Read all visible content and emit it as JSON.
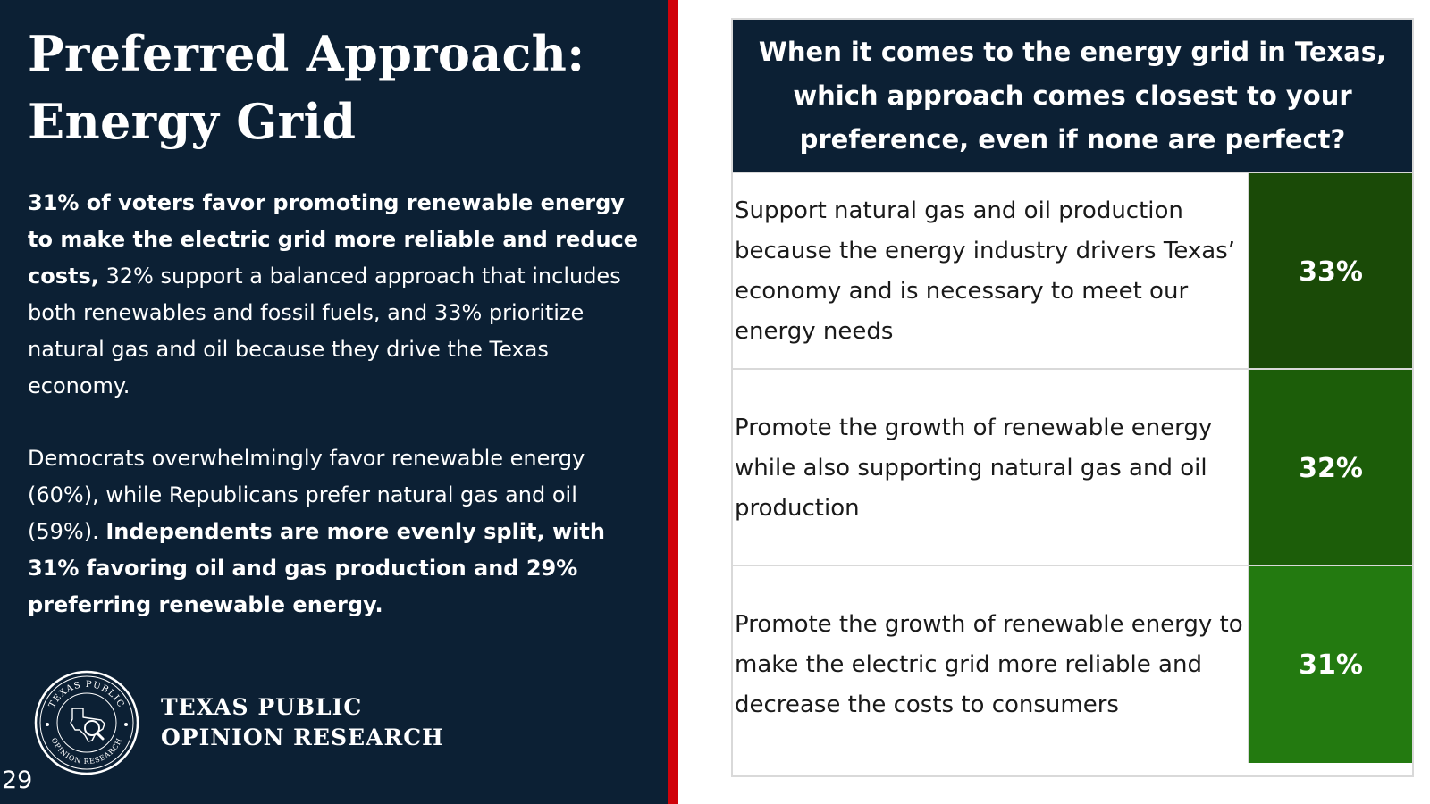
{
  "slide": {
    "title_line1": "Preferred Approach:",
    "title_line2": "Energy Grid",
    "page_number": "29"
  },
  "summary": {
    "para1_bold": " 31% of voters favor promoting renewable energy to make the electric grid more reliable and reduce costs,",
    "para1_regular": " 32% support a balanced approach that includes both renewables and fossil fuels, and 33% prioritize natural gas and oil because they drive the Texas economy.",
    "para2_regular": "Democrats overwhelmingly favor renewable energy (60%), while Republicans prefer natural gas and oil (59%). ",
    "para2_bold": "Independents are more evenly split, with 31% favoring oil and gas production and 29% preferring renewable energy."
  },
  "organization": {
    "name_line1": "TEXAS PUBLIC",
    "name_line2": "OPINION RESEARCH",
    "seal_text_top": "TEXAS PUBLIC",
    "seal_text_bottom": "OPINION RESEARCH"
  },
  "question": {
    "text": "When it comes to the energy grid in Texas, which approach comes closest to your preference, even if none are perfect?"
  },
  "options": [
    {
      "text": "Support natural gas and oil production because the energy industry drivers Texas’ economy and is necessary to meet our energy needs",
      "value": "33%",
      "share": 0.33,
      "color": "#1a4a07"
    },
    {
      "text": "Promote the growth of renewable energy while also supporting natural gas and oil production",
      "value": "32%",
      "share": 0.32,
      "color": "#1c5d09"
    },
    {
      "text": "Promote the growth of renewable energy to make the electric grid more reliable and decrease the costs to consumers",
      "value": "31%",
      "share": 0.31,
      "color": "#237a10"
    }
  ],
  "colors": {
    "navy": "#0c2034",
    "accent_red": "#d0020a"
  }
}
